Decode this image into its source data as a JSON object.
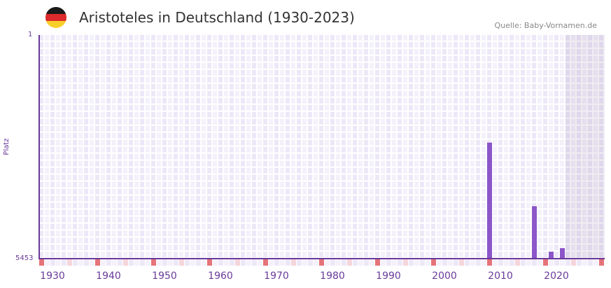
{
  "header": {
    "title": "Aristoteles in Deutschland (1930-2023)",
    "source": "Quelle: Baby-Vornamen.de",
    "flag_colors": [
      "#1a1a1a",
      "#dd2a2a",
      "#f8cf2a"
    ]
  },
  "colors": {
    "bar": "#8c55c8",
    "axis": "#6a3a9a",
    "marker_decade": "#e5737a",
    "marker_half": "#f5d5dc",
    "grid_a": "#ede8f8",
    "grid_b": "#f4f1fb"
  },
  "chart_data": {
    "type": "bar",
    "title": "Aristoteles in Deutschland (1930-2023)",
    "xlabel": "",
    "ylabel": "Platz",
    "y_inverted": true,
    "ylim": [
      1,
      5453
    ],
    "y_ticks": [
      "1",
      "5453"
    ],
    "x_range": [
      1928,
      2028
    ],
    "x_ticks": [
      "1930",
      "1940",
      "1950",
      "1960",
      "1970",
      "1980",
      "1990",
      "2000",
      "2010",
      "2020"
    ],
    "series": [
      {
        "name": "Platz",
        "points": [
          {
            "year": 2008,
            "rank": 2625
          },
          {
            "year": 2016,
            "rank": 4175
          },
          {
            "year": 2019,
            "rank": 5280
          },
          {
            "year": 2021,
            "rank": 5195
          }
        ]
      }
    ],
    "grid": true,
    "legend": "none"
  },
  "axis": {
    "y_top": "1",
    "y_bottom": "5453",
    "y_title": "Platz"
  }
}
